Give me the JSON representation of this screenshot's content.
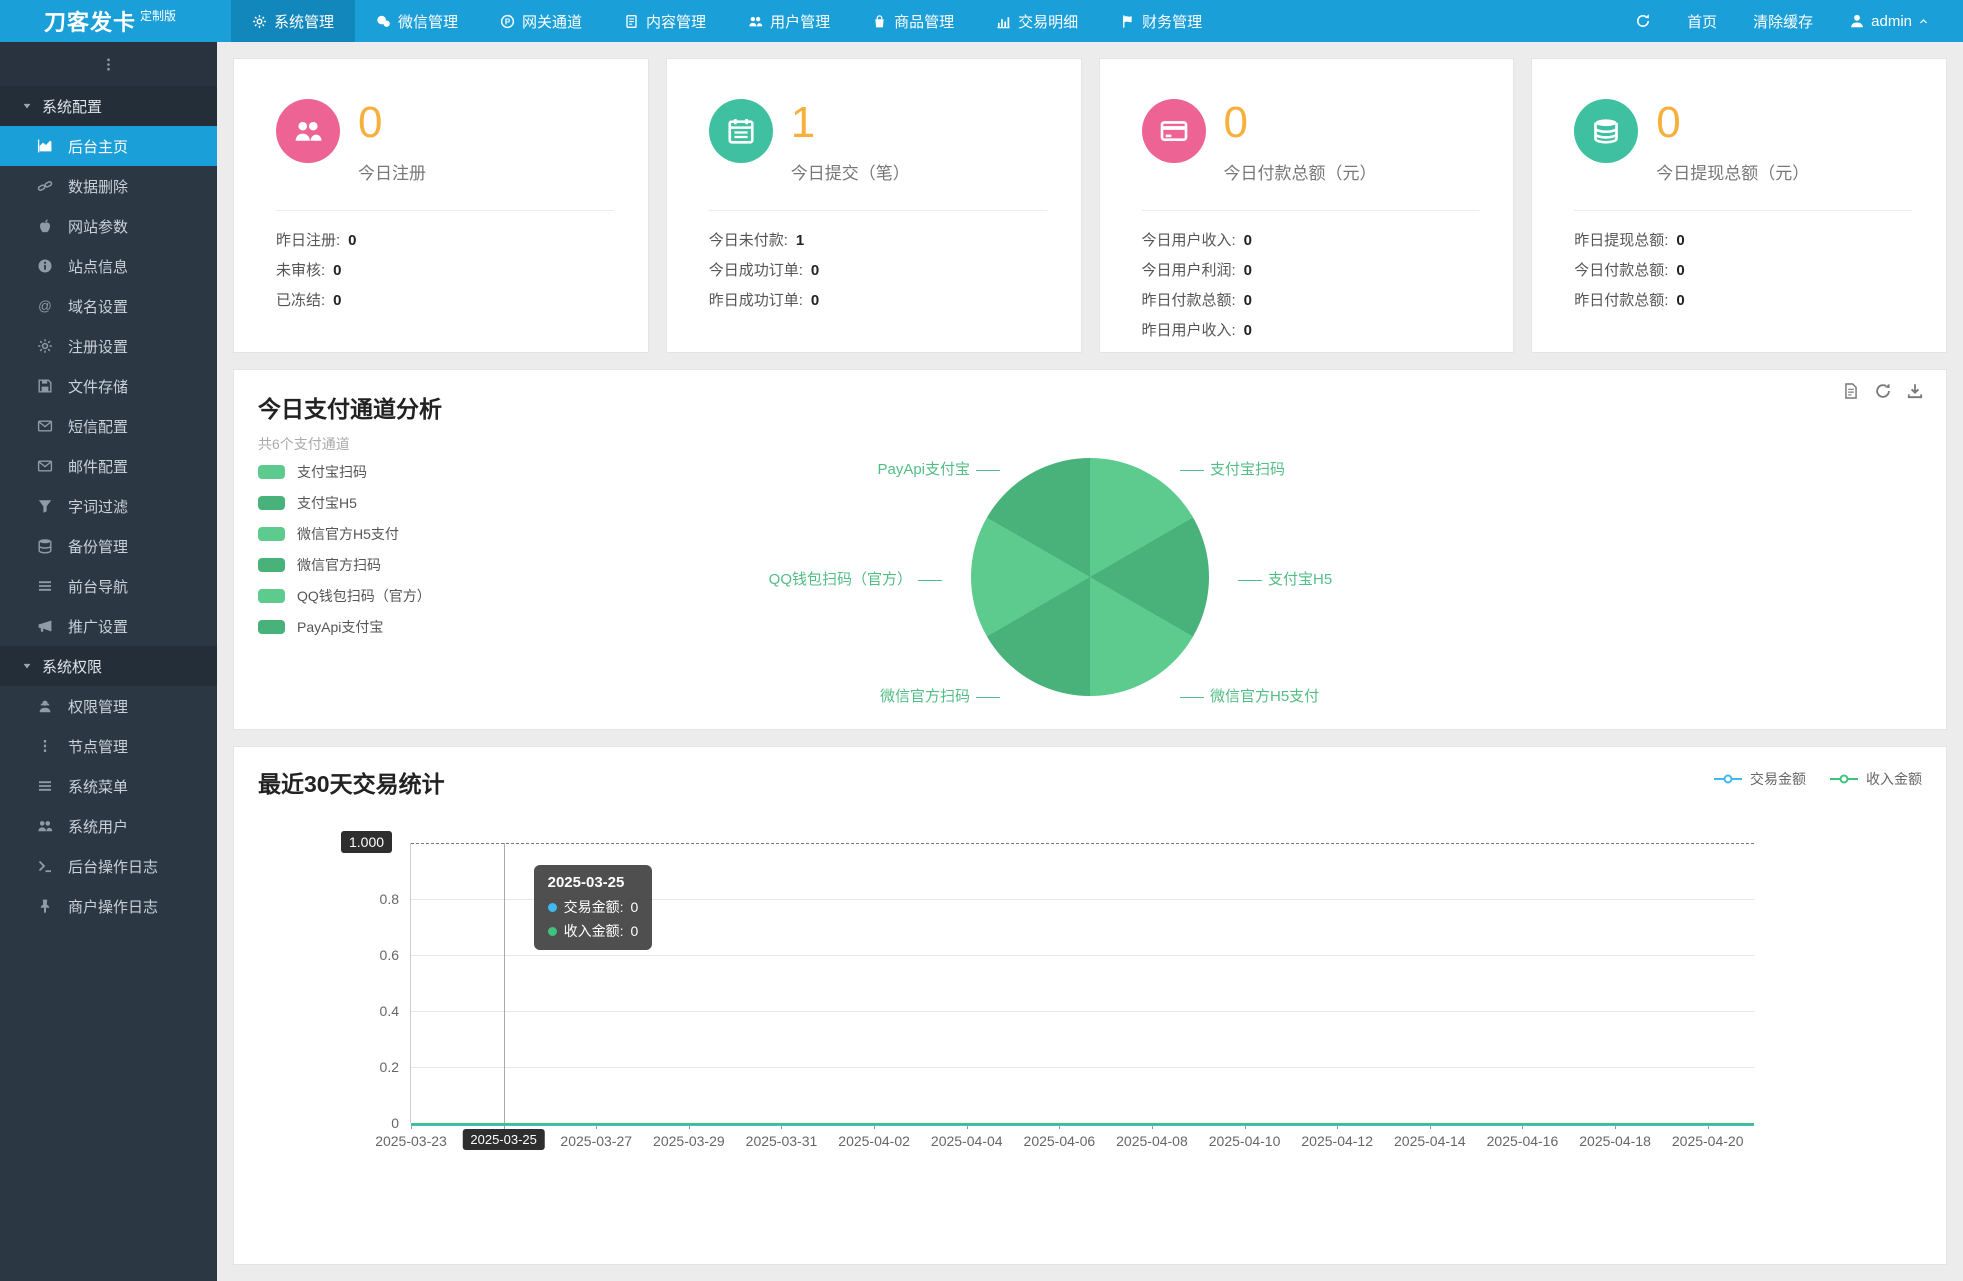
{
  "colors": {
    "navbar_blue": "#1a9fd9",
    "accent_orange": "#f7b03e",
    "pink": "#ec6394",
    "teal": "#3fc0a0",
    "pie_light": "#5ecb8e",
    "pie_dark": "#49b17a",
    "line_blue": "#41b8f0",
    "line_green": "#3ec37c"
  },
  "navbar": {
    "logo": "刀客发卡",
    "logo_badge": "定制版",
    "menu": [
      {
        "label": "系统管理",
        "icon": "gear-icon",
        "active": true
      },
      {
        "label": "微信管理",
        "icon": "wechat-icon"
      },
      {
        "label": "网关通道",
        "icon": "gateway-icon"
      },
      {
        "label": "内容管理",
        "icon": "doc-icon"
      },
      {
        "label": "用户管理",
        "icon": "users-icon"
      },
      {
        "label": "商品管理",
        "icon": "bag-icon"
      },
      {
        "label": "交易明细",
        "icon": "chart-bars-icon"
      },
      {
        "label": "财务管理",
        "icon": "money-icon"
      }
    ],
    "home": "首页",
    "clear_cache": "清除缓存",
    "username": "admin"
  },
  "sidebar": {
    "sections": [
      {
        "label": "系统配置",
        "items": [
          {
            "label": "后台主页",
            "icon": "dashboard-icon",
            "active": true
          },
          {
            "label": "数据删除",
            "icon": "link-icon"
          },
          {
            "label": "网站参数",
            "icon": "apple-icon"
          },
          {
            "label": "站点信息",
            "icon": "info-icon"
          },
          {
            "label": "域名设置",
            "icon": "at-icon"
          },
          {
            "label": "注册设置",
            "icon": "gear-icon"
          },
          {
            "label": "文件存储",
            "icon": "floppy-icon"
          },
          {
            "label": "短信配置",
            "icon": "envelope-icon"
          },
          {
            "label": "邮件配置",
            "icon": "envelope-icon"
          },
          {
            "label": "字词过滤",
            "icon": "filter-icon"
          },
          {
            "label": "备份管理",
            "icon": "database-icon"
          },
          {
            "label": "前台导航",
            "icon": "bars-icon"
          },
          {
            "label": "推广设置",
            "icon": "megaphone-icon"
          }
        ]
      },
      {
        "label": "系统权限",
        "items": [
          {
            "label": "权限管理",
            "icon": "user-secret-icon"
          },
          {
            "label": "节点管理",
            "icon": "ellipsis-v-icon"
          },
          {
            "label": "系统菜单",
            "icon": "bars-icon"
          },
          {
            "label": "系统用户",
            "icon": "users-icon"
          },
          {
            "label": "后台操作日志",
            "icon": "terminal-icon"
          },
          {
            "label": "商户操作日志",
            "icon": "pin-icon"
          }
        ]
      }
    ]
  },
  "cards": [
    {
      "icon": "users-icon",
      "icon_bg": "#ec6394",
      "value": "0",
      "label": "今日注册",
      "rows": [
        {
          "k": "昨日注册:",
          "v": "0"
        },
        {
          "k": "未审核:",
          "v": "0"
        },
        {
          "k": "已冻结:",
          "v": "0"
        }
      ]
    },
    {
      "icon": "calendar-icon",
      "icon_bg": "#3fc0a0",
      "value": "1",
      "label": "今日提交（笔）",
      "rows": [
        {
          "k": "今日未付款:",
          "v": "1"
        },
        {
          "k": "今日成功订单:",
          "v": "0"
        },
        {
          "k": "昨日成功订单:",
          "v": "0"
        }
      ]
    },
    {
      "icon": "credit-card-icon",
      "icon_bg": "#ec6394",
      "value": "0",
      "label": "今日付款总额（元）",
      "rows": [
        {
          "k": "今日用户收入:",
          "v": "0"
        },
        {
          "k": "今日用户利润:",
          "v": "0"
        },
        {
          "k": "昨日付款总额:",
          "v": "0"
        },
        {
          "k": "昨日用户收入:",
          "v": "0"
        }
      ]
    },
    {
      "icon": "coins-icon",
      "icon_bg": "#3fc0a0",
      "value": "0",
      "label": "今日提现总额（元）",
      "rows": [
        {
          "k": "昨日提现总额:",
          "v": "0"
        },
        {
          "k": "今日付款总额:",
          "v": "0"
        },
        {
          "k": "昨日付款总额:",
          "v": "0"
        }
      ]
    }
  ],
  "pie_section": {
    "title": "今日支付通道分析",
    "subtitle": "共6个支付通道",
    "legend": [
      {
        "label": "支付宝扫码",
        "color": "#5ecb8e"
      },
      {
        "label": "支付宝H5",
        "color": "#49b17a"
      },
      {
        "label": "微信官方H5支付",
        "color": "#5ecb8e"
      },
      {
        "label": "微信官方扫码",
        "color": "#49b17a"
      },
      {
        "label": "QQ钱包扫码（官方）",
        "color": "#5ecb8e"
      },
      {
        "label": "PayApi支付宝",
        "color": "#49b17a"
      }
    ],
    "callouts": {
      "top_right": "支付宝扫码",
      "top_left": "PayApi支付宝",
      "right": "支付宝H5",
      "left": "QQ钱包扫码（官方）",
      "bottom_right": "微信官方H5支付",
      "bottom_left": "微信官方扫码"
    }
  },
  "line_section": {
    "title": "最近30天交易统计",
    "legend": [
      {
        "label": "交易金额",
        "color": "#41b8f0"
      },
      {
        "label": "收入金额",
        "color": "#3ec37c"
      }
    ],
    "y_max_label": "1.000",
    "y_ticks": [
      "0.8",
      "0.6",
      "0.4",
      "0.2",
      "0"
    ],
    "x_ticks": [
      "2025-03-23",
      "2025-03-25",
      "2025-03-27",
      "2025-03-29",
      "2025-03-31",
      "2025-04-02",
      "2025-04-04",
      "2025-04-06",
      "2025-04-08",
      "2025-04-10",
      "2025-04-12",
      "2025-04-14",
      "2025-04-16",
      "2025-04-18",
      "2025-04-20"
    ],
    "marked_x": "2025-03-25",
    "tooltip": {
      "title": "2025-03-25",
      "rows": [
        {
          "label": "交易金额:",
          "value": "0",
          "color": "#41b8f0"
        },
        {
          "label": "收入金额:",
          "value": "0",
          "color": "#3ec37c"
        }
      ]
    }
  },
  "chart_data": [
    {
      "type": "pie",
      "title": "今日支付通道分析",
      "subtitle": "共6个支付通道",
      "categories": [
        "支付宝扫码",
        "支付宝H5",
        "微信官方H5支付",
        "微信官方扫码",
        "QQ钱包扫码（官方）",
        "PayApi支付宝"
      ],
      "values": [
        16.67,
        16.67,
        16.67,
        16.67,
        16.67,
        16.67
      ],
      "slice_colors": [
        "#5ecb8e",
        "#49b17a",
        "#5ecb8e",
        "#49b17a",
        "#5ecb8e",
        "#49b17a"
      ],
      "legend_position": "left"
    },
    {
      "type": "line",
      "title": "最近30天交易统计",
      "x": [
        "2025-03-23",
        "2025-03-25",
        "2025-03-27",
        "2025-03-29",
        "2025-03-31",
        "2025-04-02",
        "2025-04-04",
        "2025-04-06",
        "2025-04-08",
        "2025-04-10",
        "2025-04-12",
        "2025-04-14",
        "2025-04-16",
        "2025-04-18",
        "2025-04-20"
      ],
      "series": [
        {
          "name": "交易金额",
          "color": "#41b8f0",
          "values": [
            0,
            0,
            0,
            0,
            0,
            0,
            0,
            0,
            0,
            0,
            0,
            0,
            0,
            0,
            0
          ]
        },
        {
          "name": "收入金额",
          "color": "#3ec37c",
          "values": [
            0,
            0,
            0,
            0,
            0,
            0,
            0,
            0,
            0,
            0,
            0,
            0,
            0,
            0,
            0
          ]
        }
      ],
      "ylim": [
        0,
        1.0
      ],
      "y_tick_values": [
        0,
        0.2,
        0.4,
        0.6,
        0.8,
        1.0
      ],
      "grid": true,
      "legend_position": "top-right",
      "max_marker": {
        "value": 1.0,
        "label": "1.000"
      },
      "highlighted_x": "2025-03-25"
    }
  ]
}
